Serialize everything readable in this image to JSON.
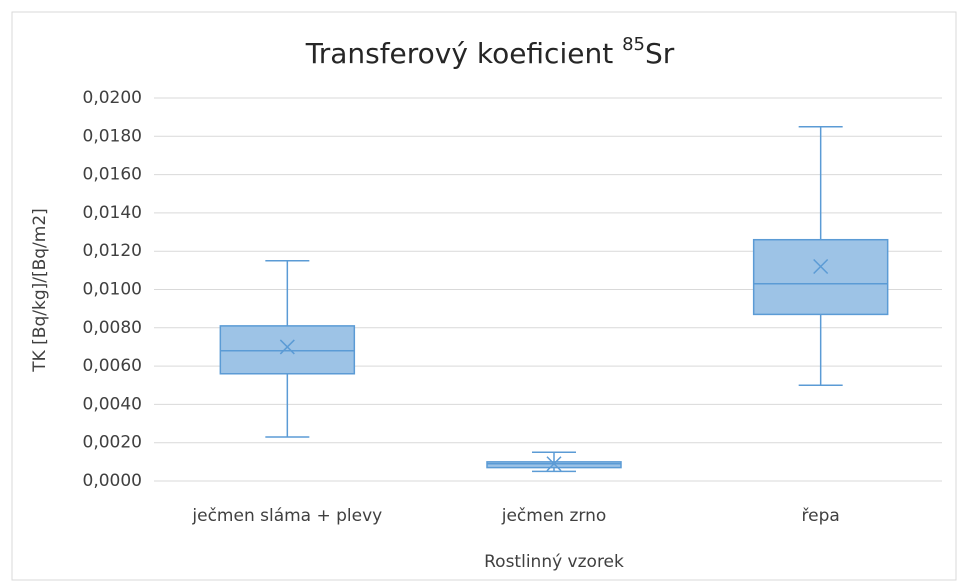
{
  "chart_data": {
    "type": "box",
    "title": "Transferový koeficient",
    "title_isotope": {
      "mass": "85",
      "symbol": "Sr"
    },
    "y_label": "TK [Bq/kg]/[Bq/m2]",
    "x_label": "Rostlinný vzorek",
    "categories": [
      "ječmen sláma + plevy",
      "ječmen zrno",
      "řepa"
    ],
    "min": [
      0.0023,
      0.0005,
      0.005
    ],
    "q1": [
      0.0056,
      0.0007,
      0.0087
    ],
    "median": [
      0.0068,
      0.0009,
      0.0103
    ],
    "q3": [
      0.0081,
      0.001,
      0.0126
    ],
    "max": [
      0.0115,
      0.0015,
      0.0185
    ],
    "mean": [
      0.007,
      0.0009,
      0.0112
    ],
    "color": "#5b9bd5",
    "fill": "#9dc3e6",
    "ylim": [
      0,
      0.02
    ],
    "yticks": [
      {
        "value": 0,
        "label": "0,0000"
      },
      {
        "value": 0.002,
        "label": "0,0020"
      },
      {
        "value": 0.004,
        "label": "0,0040"
      },
      {
        "value": 0.006,
        "label": "0,0060"
      },
      {
        "value": 0.008,
        "label": "0,0080"
      },
      {
        "value": 0.01,
        "label": "0,0100"
      },
      {
        "value": 0.012,
        "label": "0,0120"
      },
      {
        "value": 0.014,
        "label": "0,0140"
      },
      {
        "value": 0.016,
        "label": "0,0160"
      },
      {
        "value": 0.018,
        "label": "0,0180"
      },
      {
        "value": 0.02,
        "label": "0,0200"
      }
    ],
    "grid": true
  }
}
